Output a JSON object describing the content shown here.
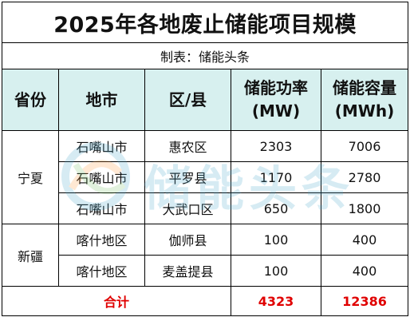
{
  "title": "2025年各地废止储能项目规模",
  "subtitle": "制表：储能头条",
  "headers": {
    "province": "省份",
    "city": "地市",
    "district": "区/县",
    "power_line1": "储能功率",
    "power_line2": "(MW)",
    "capacity_line1": "储能容量",
    "capacity_line2": "(MWh)"
  },
  "groups": [
    {
      "province": "宁夏",
      "rows": [
        {
          "city": "石嘴山市",
          "district": "惠农区",
          "power": "2303",
          "capacity": "7006"
        },
        {
          "city": "石嘴山市",
          "district": "平罗县",
          "power": "1170",
          "capacity": "2780"
        },
        {
          "city": "石嘴山市",
          "district": "大武口区",
          "power": "650",
          "capacity": "1800"
        }
      ]
    },
    {
      "province": "新疆",
      "rows": [
        {
          "city": "喀什地区",
          "district": "伽师县",
          "power": "100",
          "capacity": "400"
        },
        {
          "city": "喀什地区",
          "district": "麦盖提县",
          "power": "100",
          "capacity": "400"
        }
      ]
    }
  ],
  "total": {
    "label": "合计",
    "power": "4323",
    "capacity": "12386"
  },
  "watermark": {
    "text": "储能头条",
    "icon": "logo-swirl-icon"
  },
  "colors": {
    "header_bg": "#d7f0ef",
    "total_text": "#e00000",
    "watermark": "#4aa8cc"
  }
}
